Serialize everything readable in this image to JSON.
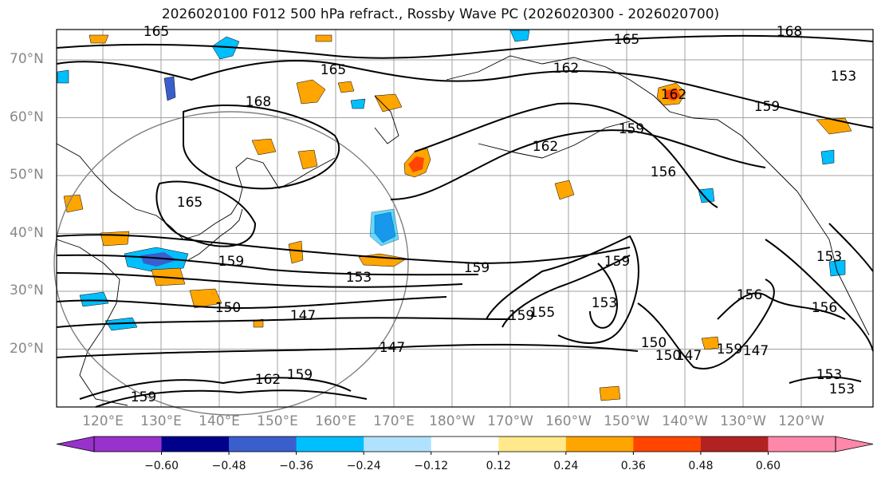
{
  "title": "2026020100 F012 500 hPa refract., Rossby Wave PC (2026020300 - 2026020700)",
  "lat_labels": [
    "70°N",
    "60°N",
    "50°N",
    "40°N",
    "30°N",
    "20°N"
  ],
  "lon_labels": [
    "120°E",
    "130°E",
    "140°E",
    "150°E",
    "160°E",
    "170°E",
    "180°W",
    "170°W",
    "160°W",
    "150°W",
    "140°W",
    "130°W",
    "120°W"
  ],
  "contour_labels": [
    "165",
    "165",
    "168",
    "165",
    "162",
    "162",
    "159",
    "159",
    "159",
    "162",
    "168",
    "165",
    "159",
    "156",
    "153",
    "153",
    "150",
    "147",
    "147",
    "147",
    "159",
    "153",
    "150",
    "156",
    "153",
    "159",
    "159",
    "162",
    "153",
    "156",
    "155",
    "159",
    "153",
    "150",
    "147",
    "159"
  ],
  "colorbar": {
    "ticks": [
      "−0.60",
      "−0.48",
      "−0.36",
      "−0.24",
      "−0.12",
      "0.12",
      "0.24",
      "0.36",
      "0.48",
      "0.60"
    ],
    "colors": [
      "#9932cc",
      "#00008b",
      "#3a5fcd",
      "#00bfff",
      "#b0e2ff",
      "#ffffff",
      "#ffe98a",
      "#ffa500",
      "#ff4500",
      "#b22222",
      "#ff88aa"
    ],
    "extend": "both"
  },
  "colors": {
    "line": "#000000",
    "grid": "#a0a0a0",
    "circle": "#808080",
    "coast": "#000000"
  }
}
